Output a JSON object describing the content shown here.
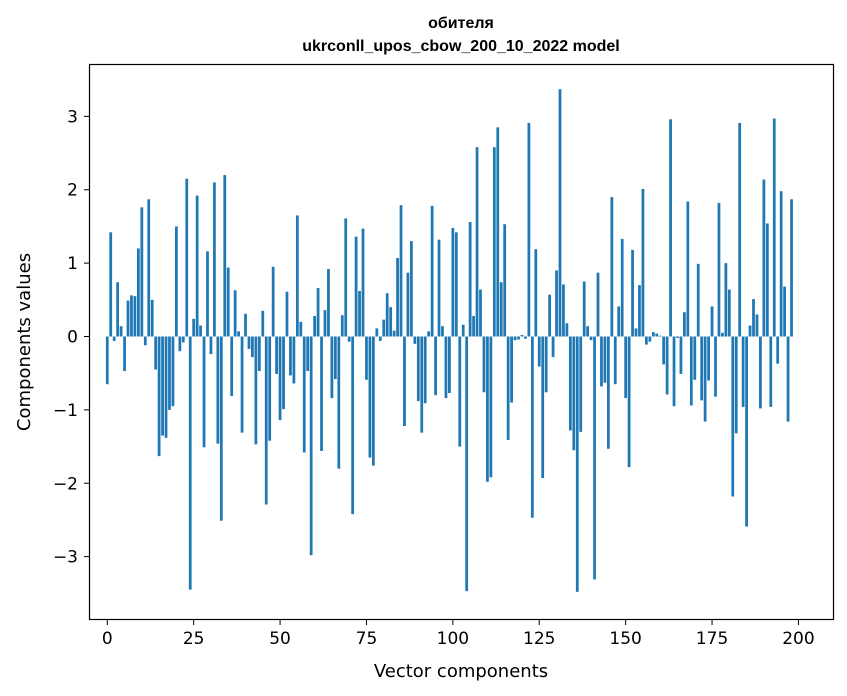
{
  "chart_data": {
    "type": "bar",
    "title_line1": "обителя",
    "title_line2": "ukrconll_upos_cbow_200_10_2022 model",
    "xlabel": "Vector components",
    "ylabel": "Components values",
    "xlim": [
      -5,
      210
    ],
    "ylim": [
      -3.85,
      3.7
    ],
    "xticks": [
      0,
      25,
      50,
      75,
      100,
      125,
      150,
      175,
      200
    ],
    "yticks": [
      -3,
      -2,
      -1,
      0,
      1,
      2,
      3
    ],
    "xtick_labels": [
      "0",
      "25",
      "50",
      "75",
      "100",
      "125",
      "150",
      "175",
      "200"
    ],
    "ytick_labels": [
      "−3",
      "−2",
      "−1",
      "0",
      "1",
      "2",
      "3"
    ],
    "bar_color": "#1f77b4",
    "values": [
      -0.65,
      1.42,
      -0.06,
      0.74,
      0.14,
      -0.47,
      0.49,
      0.56,
      0.55,
      1.2,
      1.76,
      -0.12,
      1.87,
      0.5,
      -0.45,
      -1.63,
      -1.35,
      -1.38,
      -1.0,
      -0.95,
      1.5,
      -0.2,
      -0.08,
      2.15,
      -3.45,
      0.24,
      1.92,
      0.15,
      -1.51,
      1.16,
      -0.24,
      2.1,
      -1.46,
      -2.51,
      2.2,
      0.94,
      -0.81,
      0.63,
      0.07,
      -1.31,
      0.31,
      -0.17,
      -0.28,
      -1.47,
      -0.47,
      0.35,
      -2.29,
      -1.42,
      0.95,
      -0.51,
      -1.14,
      -0.99,
      0.61,
      -0.53,
      -0.64,
      1.65,
      0.2,
      -1.58,
      -0.47,
      -2.98,
      0.28,
      0.66,
      -1.56,
      0.36,
      0.92,
      -0.84,
      -0.58,
      -1.8,
      0.29,
      1.61,
      -0.07,
      -2.42,
      1.36,
      0.62,
      1.47,
      -0.59,
      -1.65,
      -1.76,
      0.11,
      -0.06,
      0.23,
      0.59,
      0.4,
      0.08,
      1.07,
      1.79,
      -1.22,
      0.87,
      1.3,
      -0.1,
      -0.88,
      -1.31,
      -0.91,
      0.07,
      1.78,
      -0.8,
      1.32,
      0.14,
      -0.84,
      -0.77,
      1.48,
      1.42,
      -1.5,
      0.16,
      -3.47,
      1.56,
      0.28,
      2.58,
      0.64,
      -0.76,
      -1.98,
      -1.92,
      2.58,
      2.85,
      0.74,
      1.53,
      -1.41,
      -0.9,
      -0.05,
      -0.04,
      0.02,
      -0.03,
      2.91,
      -2.47,
      1.19,
      -0.41,
      -1.93,
      -0.76,
      0.57,
      -0.28,
      0.9,
      3.37,
      0.71,
      0.18,
      -1.28,
      -1.55,
      -3.48,
      -1.3,
      0.75,
      0.14,
      -0.05,
      -3.31,
      0.87,
      -0.68,
      -0.63,
      -1.53,
      1.9,
      -0.65,
      0.41,
      1.33,
      -0.84,
      -1.78,
      1.18,
      0.11,
      0.7,
      2.01,
      -0.11,
      -0.07,
      0.06,
      0.04,
      0.01,
      -0.38,
      -0.79,
      2.96,
      -0.95,
      -0.02,
      -0.51,
      0.33,
      1.84,
      -0.94,
      -0.59,
      0.99,
      -0.87,
      -1.16,
      -0.6,
      0.41,
      -0.82,
      1.82,
      0.05,
      1.0,
      0.64,
      -2.18,
      -1.32,
      2.91,
      -0.96,
      -2.59,
      0.15,
      0.51,
      0.3,
      -0.98,
      2.14,
      1.54,
      -0.96,
      2.97,
      -0.37,
      1.98,
      0.68,
      -1.16,
      1.87
    ]
  }
}
